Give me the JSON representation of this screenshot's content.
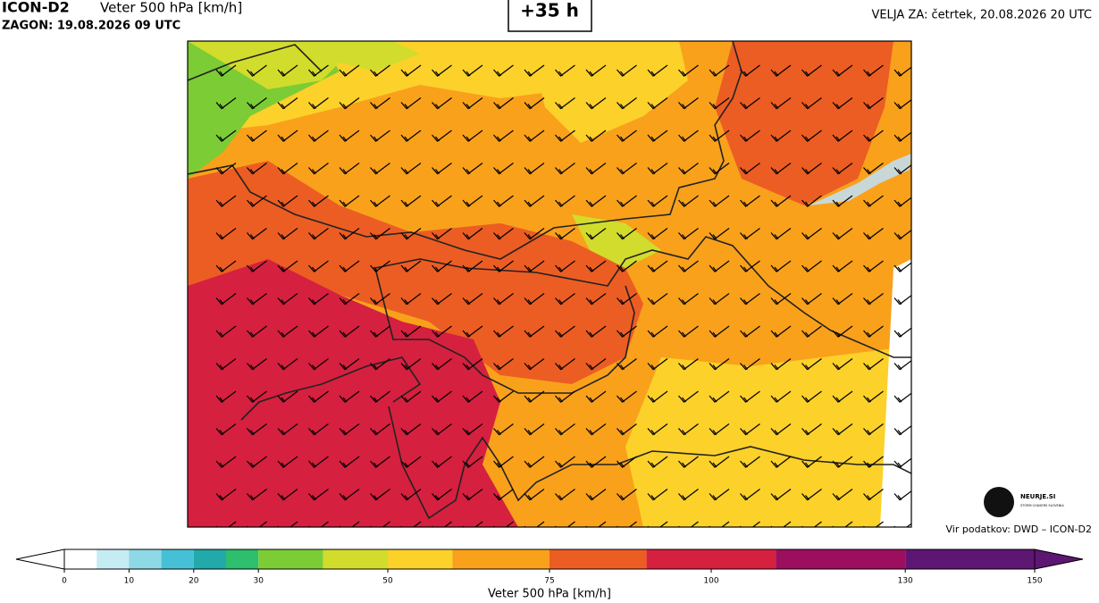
{
  "header": {
    "model": "ICON-D2",
    "field": "Veter 500 hPa [km/h]",
    "run": "ZAGON: 19.08.2026 09 UTC",
    "lead": "+35 h",
    "valid": "VELJA ZA: četrtek, 20.08.2026 20 UTC"
  },
  "colorbar": {
    "label": "Veter 500 hPa [km/h]",
    "xlim": [
      0,
      150
    ],
    "bins": [
      0,
      5,
      10,
      15,
      20,
      25,
      30,
      40,
      50,
      60,
      75,
      90,
      110,
      130,
      150
    ],
    "colors": [
      "#ffffff",
      "#c6ecf3",
      "#8fd8e6",
      "#46c0d6",
      "#22a9a9",
      "#2dbe6e",
      "#7ccc35",
      "#d2dc2c",
      "#fcd12a",
      "#f9a11b",
      "#ec5d23",
      "#d5203f",
      "#9b0f5e",
      "#5e1673"
    ],
    "ticks": [
      0,
      10,
      20,
      30,
      50,
      75,
      100,
      130,
      150
    ]
  },
  "logo": {
    "name": "NEURJE.SI",
    "tagline": "STORM CHASERS SLOVENIA"
  },
  "source": "Vir podatkov: DWD – ICON-D2"
}
